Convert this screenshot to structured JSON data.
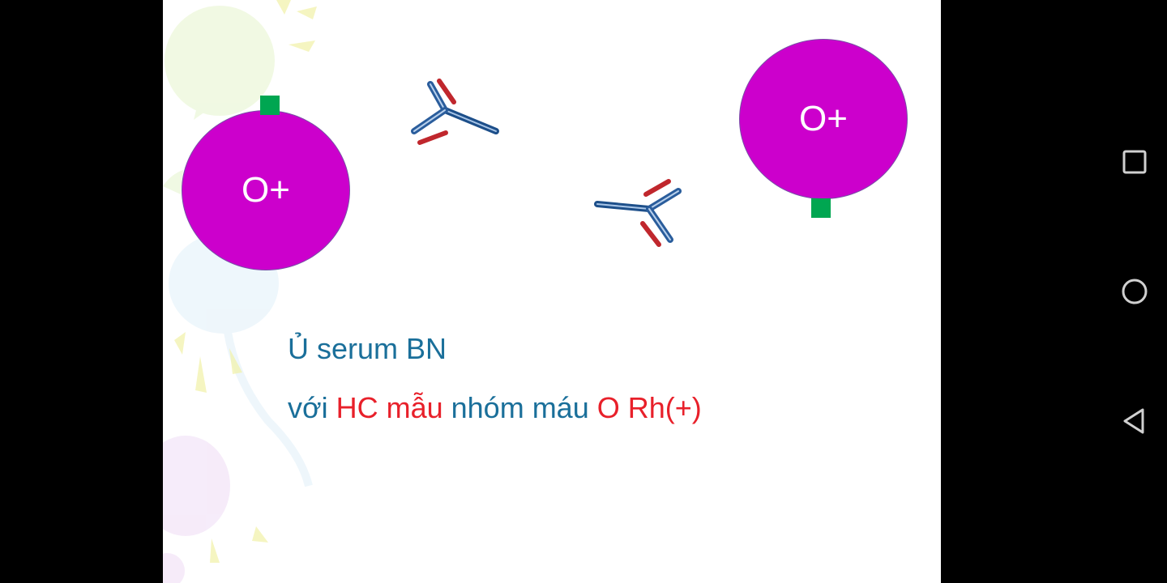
{
  "slide": {
    "cells": {
      "left_label": "O+",
      "right_label": "O+",
      "color": "#cc00cc",
      "antigen_color": "#00a651"
    },
    "caption": {
      "line1": "Ủ serum BN",
      "line2": {
        "part1": "với ",
        "part2": "HC mẫu",
        "part3": " nhóm máu ",
        "part4": "O Rh(+)"
      },
      "color_blue": "#1a6f9a",
      "color_red": "#e8202a"
    }
  },
  "navbar": {
    "buttons": [
      "recents-icon",
      "home-icon",
      "back-icon"
    ]
  }
}
